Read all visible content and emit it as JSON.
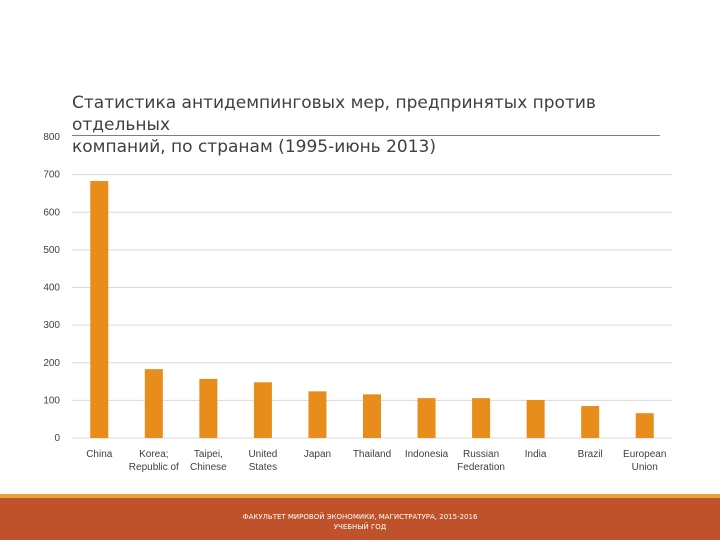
{
  "slide": {
    "footer_line1": "ФАКУЛЬТЕТ МИРОВОЙ ЭКОНОМИКИ, МАГИСТРАТУРА, 2015-2016",
    "footer_line2": "УЧЕБНЫЙ ГОД"
  },
  "colors": {
    "bar": "#e88c1c",
    "footer": "#c0522b",
    "footer_accent": "#e8a33d",
    "grid": "#d9d9d9",
    "text": "#404040"
  },
  "chart_data": {
    "type": "bar",
    "title_line1": "Статистика антидемпинговых мер, предпринятых против отдельных",
    "title_line2": "компаний, по странам (1995-июнь 2013)",
    "categories": [
      [
        "China"
      ],
      [
        "Korea;",
        "Republic of"
      ],
      [
        "Taipei,",
        "Chinese"
      ],
      [
        "United",
        "States"
      ],
      [
        "Japan"
      ],
      [
        "Thailand"
      ],
      [
        "Indonesia"
      ],
      [
        "Russian",
        "Federation"
      ],
      [
        "India"
      ],
      [
        "Brazil"
      ],
      [
        "European",
        "Union"
      ]
    ],
    "values": [
      683,
      183,
      157,
      148,
      124,
      116,
      106,
      106,
      101,
      85,
      66
    ],
    "ylim": [
      0,
      800
    ],
    "yticks": [
      0,
      100,
      200,
      300,
      400,
      500,
      600,
      700,
      800
    ],
    "grid": true,
    "xlabel": "",
    "ylabel": ""
  }
}
